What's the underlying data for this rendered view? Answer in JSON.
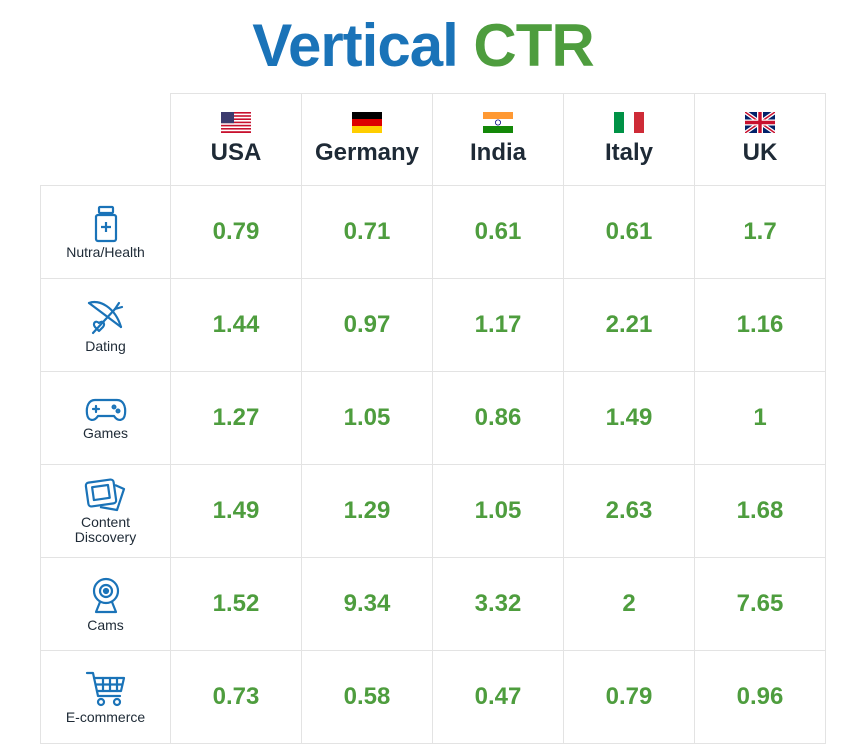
{
  "chart_data": {
    "type": "table",
    "title_part1": "Vertical",
    "title_part2": "CTR",
    "columns": [
      "USA",
      "Germany",
      "India",
      "Italy",
      "UK"
    ],
    "rows": [
      {
        "label": "Nutra/Health",
        "icon": "bottle-icon",
        "values": [
          "0.79",
          "0.71",
          "0.61",
          "0.61",
          "1.7"
        ]
      },
      {
        "label": "Dating",
        "icon": "cupid-bow-icon",
        "values": [
          "1.44",
          "0.97",
          "1.17",
          "2.21",
          "1.16"
        ]
      },
      {
        "label": "Games",
        "icon": "gamepad-icon",
        "values": [
          "1.27",
          "1.05",
          "0.86",
          "1.49",
          "1"
        ]
      },
      {
        "label": "Content Discovery",
        "icon": "photo-stack-icon",
        "values": [
          "1.49",
          "1.29",
          "1.05",
          "2.63",
          "1.68"
        ]
      },
      {
        "label": "Cams",
        "icon": "webcam-icon",
        "values": [
          "1.52",
          "9.34",
          "3.32",
          "2",
          "7.65"
        ]
      },
      {
        "label": "E-commerce",
        "icon": "shopping-cart-icon",
        "values": [
          "0.73",
          "0.58",
          "0.47",
          "0.79",
          "0.96"
        ]
      }
    ]
  },
  "colors": {
    "title_blue": "#1a73b8",
    "title_green": "#4e9d3e",
    "value_green": "#4e9d3e",
    "icon_blue": "#1a73b8",
    "label_dark": "#1e2a36",
    "grid_line": "#e3e3e3"
  }
}
